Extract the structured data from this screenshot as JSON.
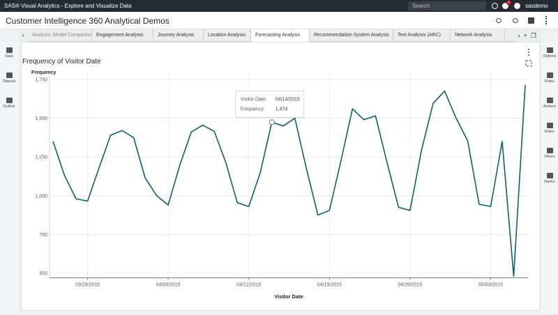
{
  "app": {
    "title": "SAS® Visual Analytics - Explore and Visualize Data",
    "search": "Search",
    "badge": "4",
    "user": "sasdemo"
  },
  "report": {
    "title": "Customer Intelligence 360 Analytical Demos",
    "tabs": [
      "Analysis: Model Comparison",
      "Engagement Analysis",
      "Journey Analysis",
      "Location Analysis",
      "Forecasting Analysis",
      "Recommendation System Analysis",
      "Text Analysis (ARC)",
      "Network Analysis"
    ]
  },
  "left_panel": [
    "Data",
    "Objects",
    "Outline"
  ],
  "right_panel": [
    "Options",
    "Roles",
    "Actions",
    "Rules",
    "Filters",
    "Ranks"
  ],
  "chart_data": {
    "type": "line",
    "title": "Frequency of Visitor Date",
    "y_label": "Frequency",
    "x_label": "Visitor Date",
    "x": [
      "03/26/2015",
      "03/27/2015",
      "03/28/2015",
      "03/29/2015",
      "03/30/2015",
      "03/31/2015",
      "04/01/2015",
      "04/02/2015",
      "04/03/2015",
      "04/04/2015",
      "04/05/2015",
      "04/06/2015",
      "04/07/2015",
      "04/08/2015",
      "04/09/2015",
      "04/10/2015",
      "04/11/2015",
      "04/12/2015",
      "04/13/2015",
      "04/14/2015",
      "04/15/2015",
      "04/16/2015",
      "04/17/2015",
      "04/18/2015",
      "04/19/2015",
      "04/20/2015",
      "04/21/2015",
      "04/22/2015",
      "04/23/2015",
      "04/24/2015",
      "04/25/2015",
      "04/26/2015",
      "04/27/2015",
      "04/28/2015",
      "04/29/2015",
      "04/30/2015",
      "05/01/2015",
      "05/02/2015",
      "05/03/2015",
      "05/04/2015",
      "05/05/2015",
      "05/06/2015"
    ],
    "series": [
      {
        "name": "Frequency",
        "color": "#0f5e6b",
        "values": [
          1350,
          1130,
          980,
          965,
          1180,
          1390,
          1420,
          1375,
          1115,
          1000,
          940,
          1195,
          1410,
          1455,
          1415,
          1215,
          955,
          930,
          1150,
          1474,
          1450,
          1500,
          1175,
          875,
          905,
          1225,
          1560,
          1490,
          1515,
          1215,
          925,
          905,
          1295,
          1595,
          1675,
          1500,
          1355,
          945,
          930,
          1350,
          480,
          1715
        ]
      }
    ],
    "xlim": [
      "03/26/2015",
      "05/06/2015"
    ],
    "xticks": [
      "03/29/2015",
      "04/05/2015",
      "04/12/2015",
      "04/19/2015",
      "04/26/2015",
      "05/03/2015"
    ],
    "ylim": [
      470,
      1775
    ],
    "yticks": [
      500,
      750,
      {
        "value": 1000,
        "label": "1,000"
      },
      {
        "value": 1250,
        "label": "1,250"
      },
      {
        "value": 1500,
        "label": "1,500"
      },
      {
        "value": 1750,
        "label": "1,750"
      }
    ],
    "grid": true,
    "tooltip": {
      "labels": [
        "Visitor Date:",
        "Frequency:"
      ],
      "value": "1,474"
    }
  }
}
